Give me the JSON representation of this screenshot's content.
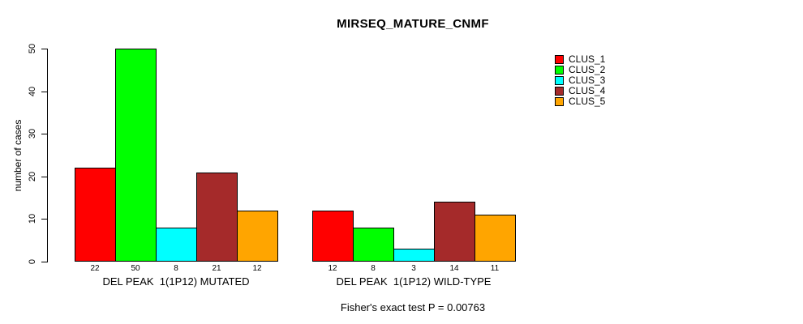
{
  "chart_data": {
    "type": "bar",
    "title": "MIRSEQ_MATURE_CNMF",
    "xlabel": "",
    "ylabel": "number of cases",
    "ylim": [
      0,
      50
    ],
    "yticks": [
      0,
      10,
      20,
      30,
      40,
      50
    ],
    "grid": false,
    "legend_position": "top-right",
    "categories": [
      "DEL PEAK  1(1P12) MUTATED",
      "DEL PEAK  1(1P12) WILD-TYPE"
    ],
    "series": [
      {
        "name": "CLUS_1",
        "color": "#FF0000",
        "values": [
          22,
          12
        ]
      },
      {
        "name": "CLUS_2",
        "color": "#00FF00",
        "values": [
          50,
          8
        ]
      },
      {
        "name": "CLUS_3",
        "color": "#00FFFF",
        "values": [
          8,
          3
        ]
      },
      {
        "name": "CLUS_4",
        "color": "#A52A2A",
        "values": [
          21,
          14
        ]
      },
      {
        "name": "CLUS_5",
        "color": "#FFA500",
        "values": [
          12,
          11
        ]
      }
    ],
    "bar_value_labels_shown": true,
    "annotation": "Fisher's exact test P = 0.00763"
  }
}
